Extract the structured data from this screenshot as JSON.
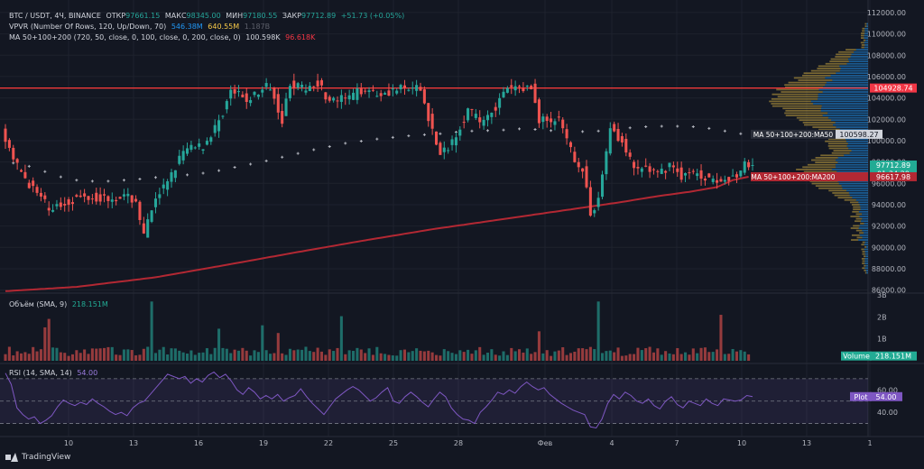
{
  "legend": {
    "symbol": "BTC / USDT, 4Ч, BINANCE",
    "open_label": "ОТКР",
    "open": "97661.15",
    "high_label": "МАКС",
    "high": "98345.00",
    "low_label": "МИН",
    "low": "97180.55",
    "close_label": "ЗАКР",
    "close": "97712.89",
    "change": "+51.73 (+0.05%)",
    "vpvr": "VPVR (Number Of Rows, 120, Up/Down, 70)",
    "vpvr_v1": "546.38M",
    "vpvr_v2": "640.55M",
    "vpvr_v3": "1.187B",
    "ma": "MA 50+100+200 (720, 50, close, 0, 100, close, 0, 200, close, 0)",
    "ma_v1": "100.598K",
    "ma_v2": "96.618K",
    "volume": "Объём (SMA, 9)",
    "volume_v": "218.151M",
    "rsi": "RSI (14, SMA, 14)",
    "rsi_v": "54.00"
  },
  "colors": {
    "up": "#26a69a",
    "down": "#ef5350",
    "ma200": "#b22833",
    "hline": "#ff3b3b",
    "rsi": "#7e57c2"
  },
  "chart_data": [
    {
      "type": "candlestick",
      "y_axis_ticks": [
        "112000.00",
        "110000.00",
        "108000.00",
        "106000.00",
        "104000.00",
        "102000.00",
        "100000.00",
        "98000.00",
        "96000.00",
        "94000.00",
        "92000.00",
        "90000.00",
        "88000.00",
        "86000.00"
      ],
      "ylim": [
        85800,
        112500
      ],
      "x_axis_ticks": [
        "10",
        "13",
        "16",
        "19",
        "22",
        "25",
        "28",
        "Фев",
        "4",
        "7",
        "10",
        "13",
        "1"
      ],
      "price_labels": [
        {
          "text": "104928.74",
          "value": 104928.74,
          "color": "#f23645"
        },
        {
          "text": "97712.89",
          "value": 97712.89,
          "color": "#22ab94"
        },
        {
          "text": "01:34:29",
          "value": 96900,
          "color": "#22ab94"
        },
        {
          "text": "96617.98",
          "value": 96617.98,
          "color": "#b22833"
        }
      ],
      "ma_labels": [
        {
          "text": "MA 50+100+200:MA50",
          "value": 100598.27,
          "color": "#2a2e39"
        },
        {
          "text": "100598.27",
          "value": 100598.27,
          "color": "#2a2e39"
        },
        {
          "text": "MA 50+100+200:MA200",
          "value": 96617.98,
          "color": "#b22833"
        }
      ],
      "horizontal_line": 104928.74,
      "ma200": [
        [
          0,
          85900
        ],
        [
          18,
          86300
        ],
        [
          38,
          87200
        ],
        [
          55,
          88300
        ],
        [
          73,
          89500
        ],
        [
          90,
          90600
        ],
        [
          108,
          91700
        ],
        [
          125,
          92600
        ],
        [
          140,
          93400
        ],
        [
          155,
          94200
        ],
        [
          165,
          94800
        ],
        [
          173,
          95200
        ],
        [
          180,
          95650
        ],
        [
          184,
          96300
        ],
        [
          188,
          96618
        ]
      ],
      "ma50_dots": [
        [
          2,
          97900
        ],
        [
          6,
          97600
        ],
        [
          10,
          97100
        ],
        [
          14,
          96600
        ],
        [
          18,
          96300
        ],
        [
          22,
          96200
        ],
        [
          26,
          96200
        ],
        [
          30,
          96300
        ],
        [
          34,
          96400
        ],
        [
          38,
          96550
        ],
        [
          42,
          96650
        ],
        [
          46,
          96800
        ],
        [
          50,
          96950
        ],
        [
          54,
          97200
        ],
        [
          58,
          97500
        ],
        [
          62,
          97800
        ],
        [
          66,
          98100
        ],
        [
          70,
          98450
        ],
        [
          74,
          98800
        ],
        [
          78,
          99150
        ],
        [
          82,
          99450
        ],
        [
          86,
          99750
        ],
        [
          90,
          99950
        ],
        [
          94,
          100150
        ],
        [
          98,
          100300
        ],
        [
          102,
          100450
        ],
        [
          106,
          100550
        ],
        [
          110,
          100650
        ],
        [
          114,
          100800
        ],
        [
          118,
          100900
        ],
        [
          122,
          100950
        ],
        [
          126,
          101000
        ],
        [
          130,
          101100
        ],
        [
          134,
          101050
        ],
        [
          138,
          100950
        ],
        [
          142,
          100900
        ],
        [
          146,
          100850
        ],
        [
          150,
          100900
        ],
        [
          154,
          101050
        ],
        [
          158,
          101200
        ],
        [
          162,
          101300
        ],
        [
          166,
          101350
        ],
        [
          170,
          101350
        ],
        [
          174,
          101300
        ],
        [
          178,
          101150
        ],
        [
          182,
          100900
        ],
        [
          186,
          100650
        ]
      ],
      "candle_trend": [
        [
          0,
          101500
        ],
        [
          3,
          98000
        ],
        [
          7,
          96000
        ],
        [
          12,
          93600
        ],
        [
          15,
          94000
        ],
        [
          18,
          94500
        ],
        [
          22,
          94800
        ],
        [
          26,
          94600
        ],
        [
          30,
          94800
        ],
        [
          34,
          94400
        ],
        [
          36,
          91000
        ],
        [
          39,
          94800
        ],
        [
          42,
          96000
        ],
        [
          46,
          99000
        ],
        [
          51,
          99500
        ],
        [
          55,
          101800
        ],
        [
          58,
          104600
        ],
        [
          62,
          103800
        ],
        [
          65,
          104500
        ],
        [
          68,
          105200
        ],
        [
          71,
          102000
        ],
        [
          73,
          105500
        ],
        [
          76,
          104800
        ],
        [
          80,
          105500
        ],
        [
          83,
          103600
        ],
        [
          88,
          104000
        ],
        [
          92,
          105000
        ],
        [
          95,
          104400
        ],
        [
          100,
          104800
        ],
        [
          106,
          104800
        ],
        [
          108,
          102200
        ],
        [
          111,
          98500
        ],
        [
          114,
          100000
        ],
        [
          118,
          102900
        ],
        [
          121,
          101800
        ],
        [
          125,
          103200
        ],
        [
          128,
          104800
        ],
        [
          131,
          105000
        ],
        [
          134,
          104900
        ],
        [
          136,
          102000
        ],
        [
          141,
          101800
        ],
        [
          144,
          99000
        ],
        [
          147,
          97200
        ],
        [
          149,
          93200
        ],
        [
          151,
          94600
        ],
        [
          154,
          101400
        ],
        [
          157,
          99800
        ],
        [
          160,
          97200
        ],
        [
          163,
          97500
        ],
        [
          166,
          96700
        ],
        [
          169,
          97800
        ],
        [
          172,
          96700
        ],
        [
          175,
          96900
        ],
        [
          178,
          96600
        ],
        [
          181,
          96500
        ],
        [
          184,
          96300
        ],
        [
          186,
          97000
        ],
        [
          188,
          97712.89
        ]
      ],
      "profile_peak_price": 103800
    },
    {
      "type": "bar",
      "title": "Объём (SMA, 9)",
      "y_axis_ticks": [
        "3B",
        "2B",
        "1B"
      ],
      "ylim": [
        0,
        3000
      ],
      "last_value_label": "Volume",
      "last_value": "218.151M"
    },
    {
      "type": "line",
      "title": "RSI (14, SMA, 14)",
      "y_axis_ticks": [
        "60.00",
        "40.00"
      ],
      "ylim": [
        20,
        82
      ],
      "band": [
        30,
        70
      ],
      "last_value_label": "Plot",
      "last_value": "54.00",
      "values": [
        75,
        65,
        44,
        38,
        34,
        36,
        30,
        33,
        37,
        45,
        51,
        48,
        46,
        49,
        47,
        52,
        48,
        45,
        41,
        38,
        40,
        37,
        44,
        48,
        50,
        56,
        62,
        68,
        74,
        72,
        70,
        72,
        66,
        70,
        67,
        73,
        76,
        71,
        74,
        68,
        60,
        56,
        62,
        58,
        52,
        55,
        52,
        56,
        50,
        53,
        55,
        61,
        54,
        48,
        43,
        38,
        45,
        52,
        56,
        60,
        63,
        60,
        55,
        50,
        53,
        58,
        62,
        50,
        48,
        54,
        58,
        54,
        49,
        45,
        52,
        58,
        54,
        44,
        38,
        34,
        33,
        30,
        40,
        45,
        51,
        58,
        56,
        60,
        57,
        63,
        67,
        63,
        60,
        62,
        56,
        52,
        48,
        45,
        42,
        40,
        38,
        27,
        26,
        34,
        48,
        56,
        52,
        58,
        55,
        50,
        48,
        52,
        46,
        43,
        50,
        54,
        47,
        44,
        50,
        48,
        46,
        52,
        48,
        46,
        52,
        51,
        50,
        51,
        55,
        54
      ]
    }
  ]
}
